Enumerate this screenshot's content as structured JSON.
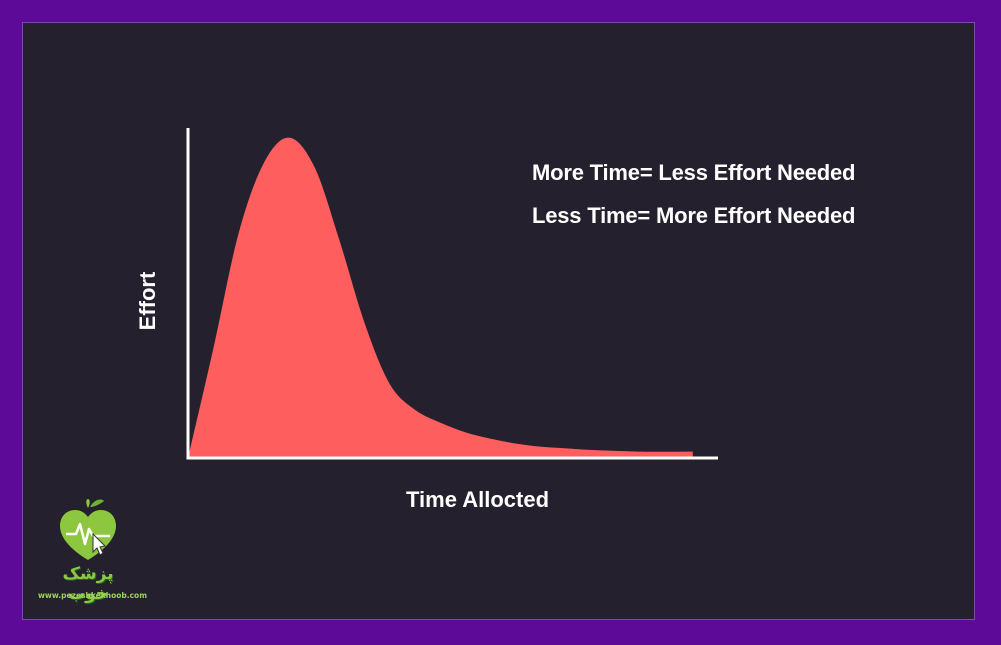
{
  "chart_data": {
    "type": "area",
    "title": "",
    "xlabel": "Time Allocted",
    "ylabel": "Effort",
    "annotations": [
      "More Time= Less Effort Needed",
      "Less Time= More Effort Needed"
    ],
    "x": [
      0,
      0.5,
      1,
      1.5,
      2,
      2.5,
      3,
      3.5,
      4,
      4.5,
      5,
      5.5,
      6,
      6.5,
      7,
      7.5,
      8,
      9,
      10
    ],
    "series": [
      {
        "values": [
          0,
          0.34,
          0.7,
          0.92,
          1.0,
          0.91,
          0.68,
          0.42,
          0.23,
          0.15,
          0.11,
          0.08,
          0.06,
          0.045,
          0.035,
          0.03,
          0.025,
          0.02,
          0.02
        ],
        "color": "#fe5f5e"
      }
    ],
    "xlim": [
      0,
      10.5
    ],
    "ylim": [
      0,
      1.03
    ],
    "grid": false,
    "axis_color": "#ffffff"
  },
  "logo": {
    "name_fa": "پزشک خوب",
    "url": "www.pezeshkekhoob.com",
    "color": "#8dc63f"
  }
}
